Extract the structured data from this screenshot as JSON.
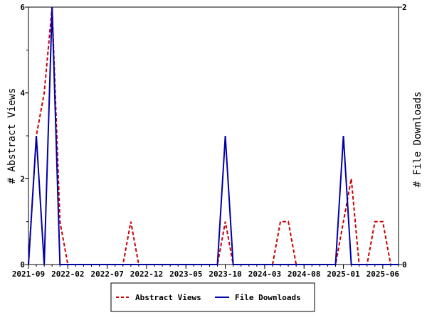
{
  "chart_data": {
    "type": "line",
    "title": "",
    "xlabel": "",
    "ylabel": "# Abstract Views",
    "y2label": "# File Downloads",
    "ylim": [
      0,
      6
    ],
    "y2lim": [
      0,
      2
    ],
    "yticks": [
      "0",
      "2",
      "4",
      "6"
    ],
    "y2ticks": [
      "0",
      "2"
    ],
    "xticks": [
      "2021-09",
      "2022-02",
      "2022-07",
      "2022-12",
      "2023-05",
      "2023-10",
      "2024-03",
      "2024-08",
      "2025-01",
      "2025-06"
    ],
    "grid": false,
    "legend": "bottom-center",
    "months": [
      "2021-09",
      "2021-10",
      "2021-11",
      "2021-12",
      "2022-01",
      "2022-02",
      "2022-03",
      "2022-04",
      "2022-05",
      "2022-06",
      "2022-07",
      "2022-08",
      "2022-09",
      "2022-10",
      "2022-11",
      "2022-12",
      "2023-01",
      "2023-02",
      "2023-03",
      "2023-04",
      "2023-05",
      "2023-06",
      "2023-07",
      "2023-08",
      "2023-09",
      "2023-10",
      "2023-11",
      "2023-12",
      "2024-01",
      "2024-02",
      "2024-03",
      "2024-04",
      "2024-05",
      "2024-06",
      "2024-07",
      "2024-08",
      "2024-09",
      "2024-10",
      "2024-11",
      "2024-12",
      "2025-01",
      "2025-02",
      "2025-03",
      "2025-04",
      "2025-05",
      "2025-06",
      "2025-07",
      "2025-08"
    ],
    "series": [
      {
        "name": "Abstract Views",
        "axis": "left",
        "color": "#cc0000",
        "style": "dashed",
        "values": [
          0,
          3,
          4,
          6,
          1,
          0,
          0,
          0,
          0,
          0,
          0,
          0,
          0,
          1,
          0,
          0,
          0,
          0,
          0,
          0,
          0,
          0,
          0,
          0,
          0,
          1,
          0,
          0,
          0,
          0,
          0,
          0,
          1,
          1,
          0,
          0,
          0,
          0,
          0,
          0,
          1,
          2,
          0,
          0,
          1,
          1,
          0,
          0
        ]
      },
      {
        "name": "File Downloads",
        "axis": "right",
        "color": "#0000aa",
        "style": "solid",
        "values": [
          0,
          1,
          0,
          2,
          0,
          0,
          0,
          0,
          0,
          0,
          0,
          0,
          0,
          0,
          0,
          0,
          0,
          0,
          0,
          0,
          0,
          0,
          0,
          0,
          0,
          1,
          0,
          0,
          0,
          0,
          0,
          0,
          0,
          0,
          0,
          0,
          0,
          0,
          0,
          0,
          1,
          0,
          0,
          0,
          0,
          0,
          0,
          0
        ]
      }
    ]
  }
}
